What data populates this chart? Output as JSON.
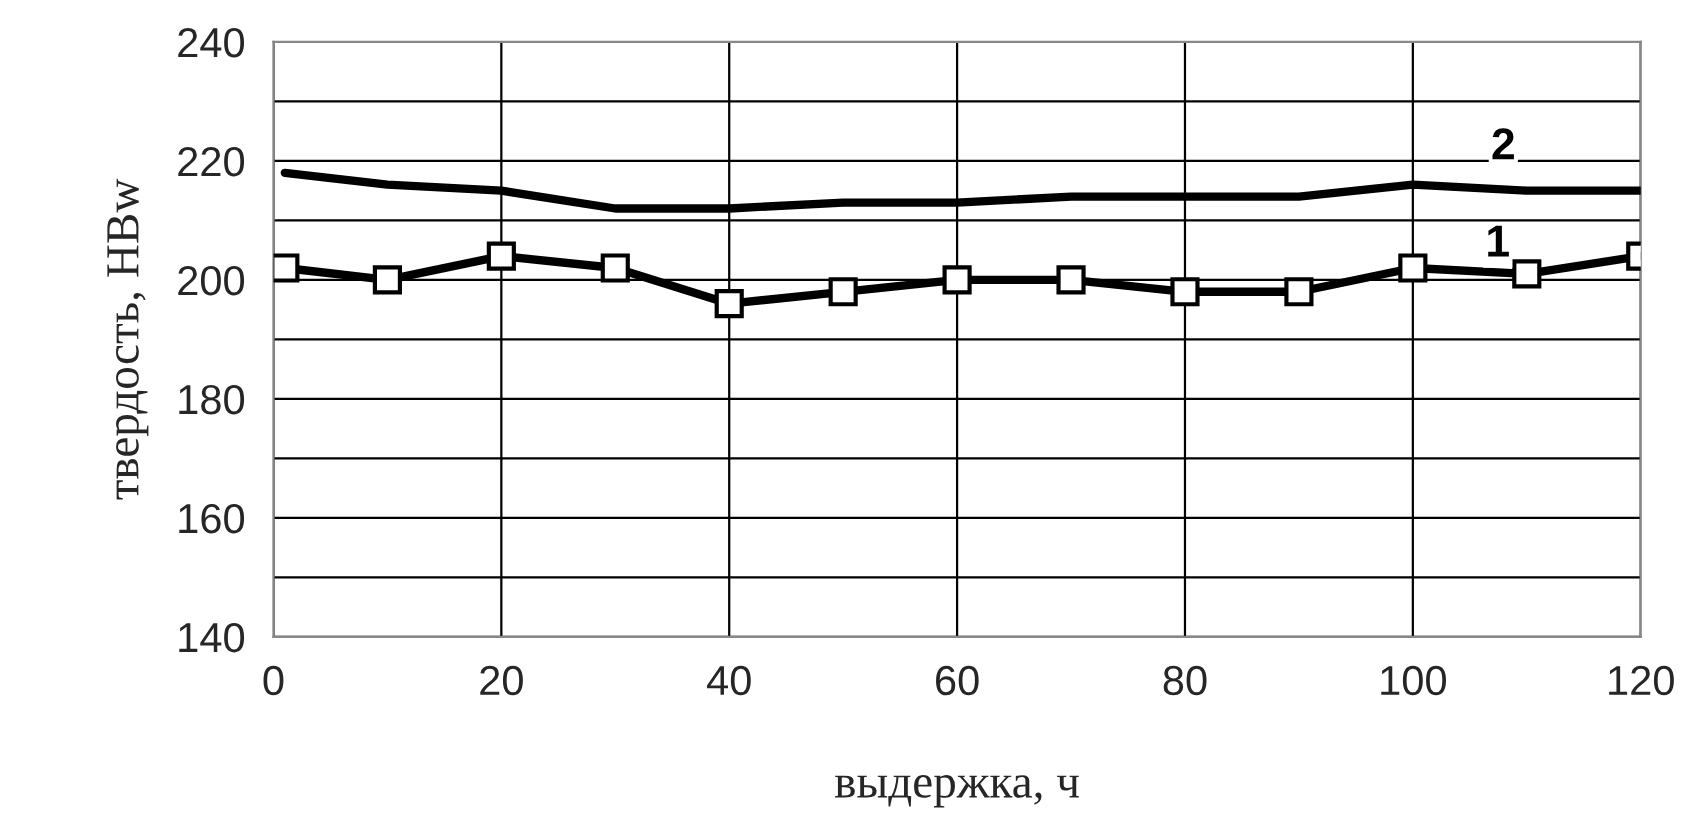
{
  "chart_data": {
    "type": "line",
    "xlabel": "выдержка, ч",
    "ylabel": "твердость, HBw",
    "xlim": [
      0,
      120
    ],
    "xticks": [
      0,
      20,
      40,
      60,
      80,
      100,
      120
    ],
    "ylim": [
      140,
      240
    ],
    "yticks": [
      140,
      {
        "value": 150,
        "label": null
      },
      160,
      {
        "value": 170,
        "label": null
      },
      180,
      {
        "value": 190,
        "label": null
      },
      200,
      {
        "value": 210,
        "label": null
      },
      220,
      {
        "value": 230,
        "label": null
      },
      240
    ],
    "grid": true,
    "line_style": "solid",
    "series": [
      {
        "name": "1",
        "color": "#000000",
        "marker": "square",
        "x": [
          1,
          10,
          20,
          30,
          40,
          50,
          60,
          70,
          80,
          90,
          100,
          110,
          120
        ],
        "values": [
          202,
          200,
          204,
          202,
          196,
          198,
          200,
          200,
          198,
          198,
          202,
          201,
          204
        ]
      },
      {
        "name": "2",
        "color": "#000000",
        "marker": "none",
        "x": [
          1,
          10,
          20,
          30,
          40,
          50,
          60,
          70,
          80,
          90,
          100,
          110,
          120
        ],
        "values": [
          218,
          216,
          215,
          212,
          212,
          213,
          213,
          214,
          214,
          214,
          216,
          215,
          215
        ]
      }
    ]
  }
}
